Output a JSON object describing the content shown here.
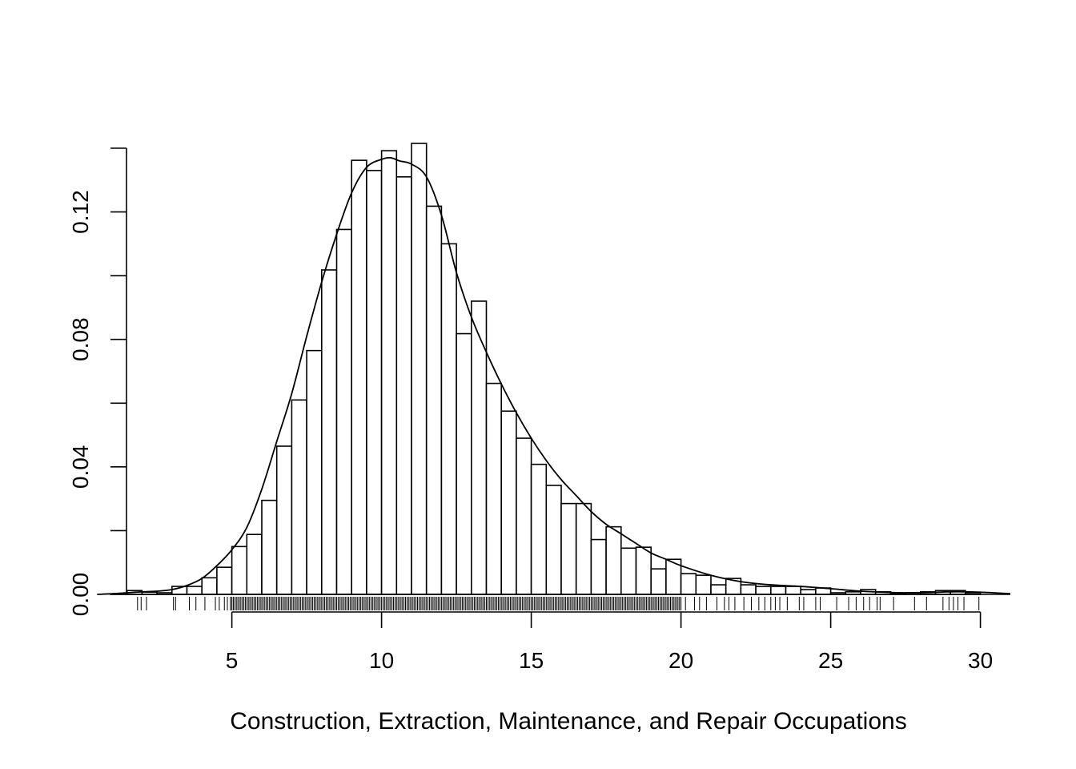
{
  "chart_data": {
    "type": "histogram",
    "title": "",
    "xlabel": "Construction, Extraction, Maintenance, and Repair Occupations",
    "ylabel": "",
    "xlim": [
      1.0,
      31.0
    ],
    "ylim": [
      0,
      0.14
    ],
    "grid": false,
    "legend": "none",
    "x_ticks": [
      5,
      10,
      15,
      20,
      25,
      30
    ],
    "x_tick_labels": [
      "5",
      "10",
      "15",
      "20",
      "25",
      "30"
    ],
    "y_ticks": [
      0.0,
      0.02,
      0.04,
      0.06,
      0.08,
      0.1,
      0.12,
      0.14
    ],
    "y_tick_labels": [
      "0.00",
      "",
      "0.04",
      "",
      "0.08",
      "",
      "0.12",
      ""
    ],
    "bin_edges": [
      1.5,
      2.0,
      2.5,
      3.0,
      3.5,
      4.0,
      4.5,
      5.0,
      5.5,
      6.0,
      6.5,
      7.0,
      7.5,
      8.0,
      8.5,
      9.0,
      9.5,
      10.0,
      10.5,
      11.0,
      11.5,
      12.0,
      12.5,
      13.0,
      13.5,
      14.0,
      14.5,
      15.0,
      15.5,
      16.0,
      16.5,
      17.0,
      17.5,
      18.0,
      18.5,
      19.0,
      19.5,
      20.0,
      20.5,
      21.0,
      21.5,
      22.0,
      22.5,
      23.0,
      23.5,
      24.0,
      24.5,
      25.0,
      25.5,
      26.0,
      26.5,
      27.0,
      27.5,
      28.0,
      28.5,
      29.0,
      29.5,
      30.0
    ],
    "bar_values": [
      0.0012,
      0.0007,
      0.0005,
      0.0025,
      0.0025,
      0.0052,
      0.0085,
      0.015,
      0.0188,
      0.0295,
      0.0465,
      0.061,
      0.0765,
      0.1018,
      0.1145,
      0.1362,
      0.133,
      0.1392,
      0.131,
      0.1415,
      0.1218,
      0.11,
      0.0818,
      0.092,
      0.0662,
      0.0575,
      0.049,
      0.0408,
      0.0342,
      0.0285,
      0.0285,
      0.0172,
      0.0212,
      0.0145,
      0.0148,
      0.008,
      0.011,
      0.0065,
      0.006,
      0.003,
      0.005,
      0.003,
      0.0025,
      0.0025,
      0.0025,
      0.0015,
      0.002,
      0.0005,
      0.0008,
      0.0015,
      0.0008,
      0.0003,
      0.0005,
      0.0008,
      0.0012,
      0.0012,
      0.0005
    ],
    "density_x": [
      0.5,
      1.0,
      1.5,
      2.0,
      2.5,
      3.0,
      3.5,
      4.0,
      4.5,
      5.0,
      5.5,
      6.0,
      6.5,
      7.0,
      7.5,
      8.0,
      8.5,
      9.0,
      9.5,
      10.0,
      10.3,
      10.6,
      11.0,
      11.5,
      12.0,
      12.5,
      13.0,
      13.5,
      14.0,
      14.5,
      15.0,
      15.5,
      16.0,
      16.5,
      17.0,
      17.5,
      18.0,
      18.5,
      19.0,
      19.5,
      20.0,
      21.0,
      22.0,
      23.0,
      24.0,
      25.0,
      26.0,
      27.0,
      28.0,
      29.0,
      30.0,
      31.0
    ],
    "density_y": [
      0.0,
      0.0002,
      0.0005,
      0.0008,
      0.001,
      0.0015,
      0.0028,
      0.005,
      0.009,
      0.014,
      0.021,
      0.033,
      0.048,
      0.063,
      0.081,
      0.098,
      0.113,
      0.126,
      0.134,
      0.1365,
      0.137,
      0.136,
      0.135,
      0.131,
      0.119,
      0.101,
      0.087,
      0.076,
      0.066,
      0.057,
      0.049,
      0.042,
      0.036,
      0.031,
      0.026,
      0.022,
      0.019,
      0.016,
      0.013,
      0.011,
      0.009,
      0.006,
      0.004,
      0.003,
      0.0025,
      0.0018,
      0.001,
      0.0006,
      0.0005,
      0.0008,
      0.0007,
      0.0002
    ],
    "rug_positions": [
      1.85,
      1.97,
      2.15,
      3.05,
      3.12,
      3.58,
      3.8,
      4.1,
      4.45,
      4.58,
      4.75,
      4.85,
      4.95,
      5.0,
      20.15,
      20.45,
      20.62,
      20.85,
      21.2,
      21.45,
      21.6,
      21.8,
      22.1,
      22.35,
      22.6,
      22.8,
      23.0,
      23.15,
      23.3,
      23.55,
      23.95,
      24.1,
      24.5,
      24.65,
      25.2,
      25.6,
      25.85,
      26.1,
      26.3,
      26.55,
      26.65,
      27.1,
      27.8,
      28.2,
      28.75,
      28.95,
      29.1,
      29.25,
      29.45,
      29.95
    ],
    "rug_dense_range": [
      5.0,
      20.0
    ]
  }
}
